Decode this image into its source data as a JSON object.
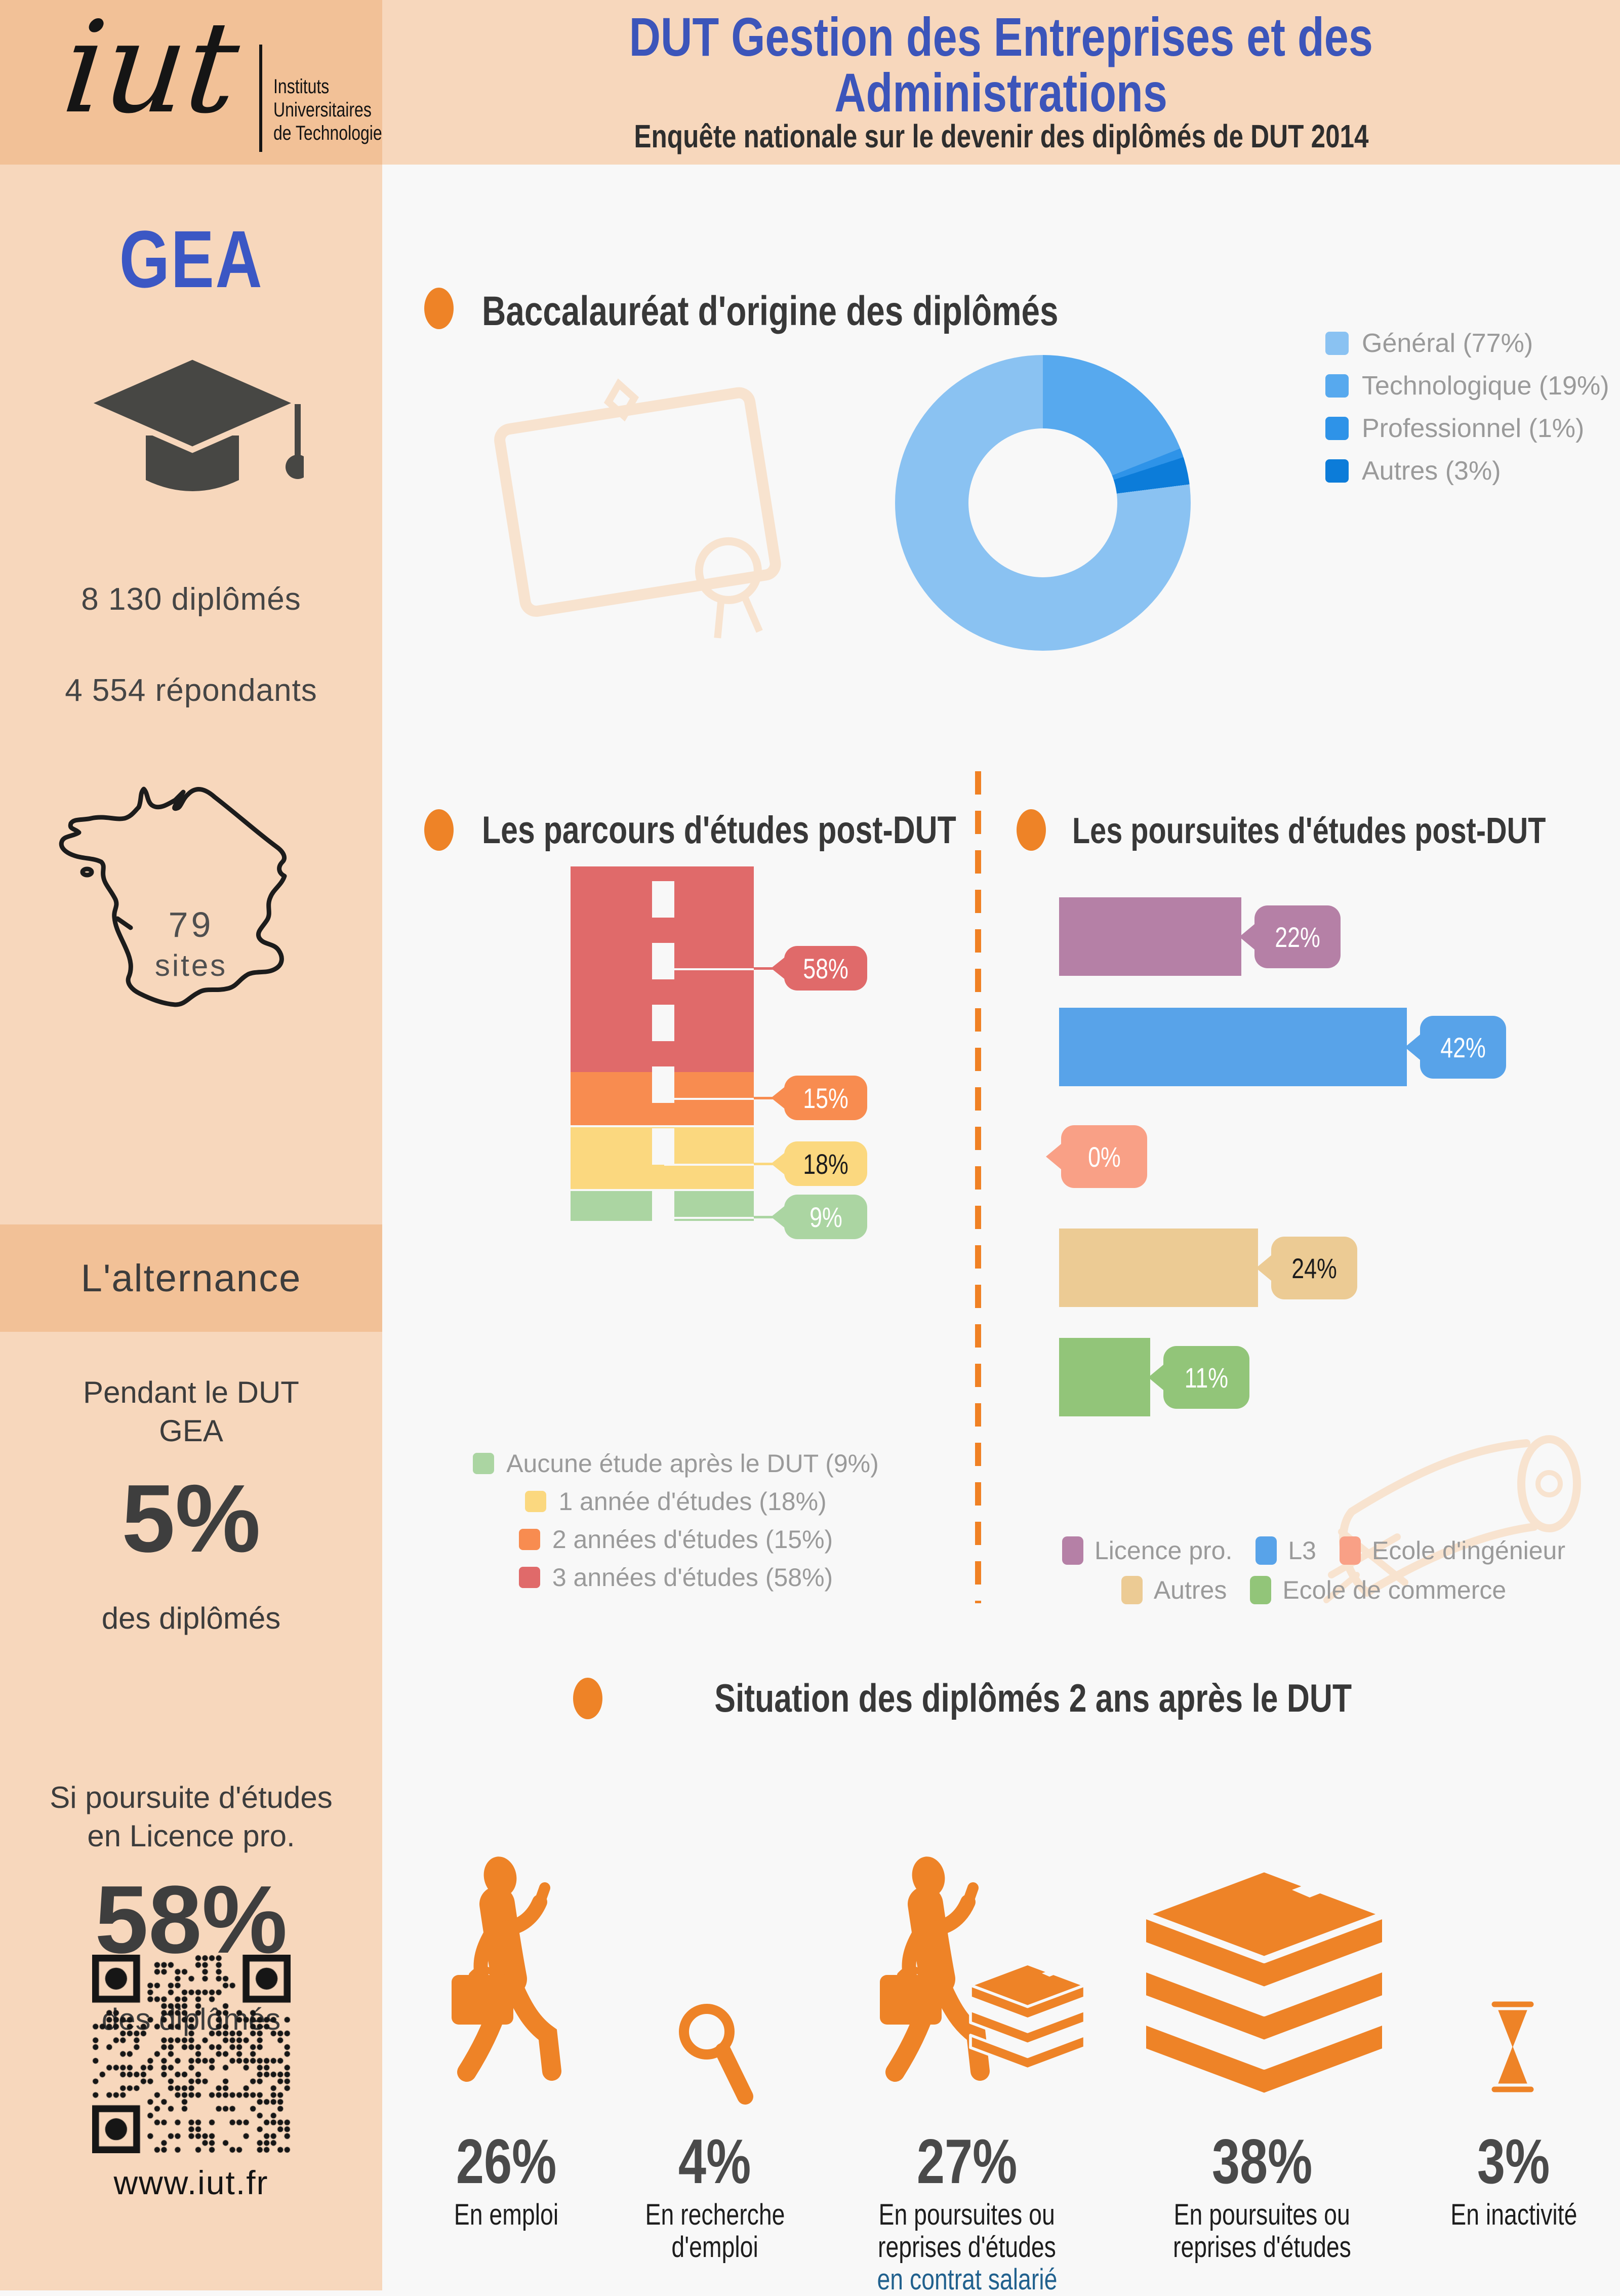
{
  "header": {
    "title_line1": "DUT Gestion des Entreprises et des",
    "title_line2": "Administrations",
    "subtitle": "Enquête nationale sur le devenir des diplômés de DUT 2014"
  },
  "sidebar": {
    "logo_text": "iut",
    "logo_caption_lines": [
      "Instituts",
      "Universitaires",
      "de Technologie"
    ],
    "program": "GEA",
    "stat_diplomes": "8 130 diplômés",
    "stat_repondants": "4 554 répondants",
    "map_number": "79",
    "map_label": "sites",
    "alternance_title": "L'alternance",
    "pendant_line1": "Pendant le DUT",
    "pendant_line2": "GEA",
    "alternance_pct": "5%",
    "alternance_note": "des diplômés",
    "licence_line1": "Si poursuite d'études",
    "licence_line2": "en Licence pro.",
    "licence_pct": "58%",
    "licence_note": "des diplômés",
    "website": "www.iut.fr"
  },
  "sections": {
    "bac_heading": "Baccalauréat d'origine des diplômés",
    "parcours_heading": "Les parcours d'études post-DUT",
    "poursuites_heading": "Les poursuites d'études post-DUT",
    "situation_heading": "Situation des diplômés 2 ans après le DUT"
  },
  "chart_data": [
    {
      "id": "bac_origine",
      "type": "pie",
      "donut": true,
      "title": "Baccalauréat d'origine des diplômés",
      "labels": [
        "Général",
        "Technologique",
        "Professionnel",
        "Autres"
      ],
      "values": [
        77,
        19,
        1,
        3
      ],
      "colors": [
        "#8ac2f2",
        "#57a9ee",
        "#2e93e8",
        "#0c7cd9"
      ],
      "draw_order": [
        1,
        2,
        3,
        0
      ],
      "legend": [
        "Général (77%)",
        "Technologique (19%)",
        "Professionnel (1%)",
        "Autres (3%)"
      ],
      "legend_position": "right"
    },
    {
      "id": "parcours",
      "type": "bar",
      "stacked": true,
      "orientation": "vertical",
      "title": "Les parcours d'études post-DUT",
      "categories": [
        "3 années d'études",
        "2 années d'études",
        "1 année d'études",
        "Aucune étude après le DUT"
      ],
      "values": [
        58,
        15,
        18,
        9
      ],
      "labels": [
        "58%",
        "15%",
        "18%",
        "9%"
      ],
      "colors": [
        "#e06a6a",
        "#f88c50",
        "#fbd87f",
        "#abd5a2"
      ],
      "legend": [
        "Aucune étude après le DUT (9%)",
        "1 année d'études (18%)",
        "2 années d'études (15%)",
        "3 années d'études (58%)"
      ],
      "legend_colors": [
        "#abd5a2",
        "#fbd87f",
        "#f88c50",
        "#e06a6a"
      ],
      "ylim": [
        0,
        100
      ]
    },
    {
      "id": "poursuites",
      "type": "bar",
      "orientation": "horizontal",
      "title": "Les poursuites d'études post-DUT",
      "categories": [
        "Licence pro.",
        "L3",
        "Ecole d'ingénieur",
        "Autres",
        "Ecole de commerce"
      ],
      "values": [
        22,
        42,
        0,
        24,
        11
      ],
      "labels": [
        "22%",
        "42%",
        "0%",
        "24%",
        "11%"
      ],
      "colors": [
        "#b580a6",
        "#58a3e9",
        "#f9a086",
        "#eccb94",
        "#92c579"
      ],
      "legend_row1": [
        "Licence pro.",
        "L3",
        "Ecole d'ingénieur"
      ],
      "legend_row2": [
        "Autres",
        "Ecole de commerce"
      ],
      "xlim": [
        0,
        50
      ]
    }
  ],
  "situation_items": [
    {
      "icon": "walking-worker-icon",
      "pct": "26%",
      "l1": "En emploi"
    },
    {
      "icon": "magnifier-icon",
      "pct": "4%",
      "l1": "En recherche",
      "l2": "d'emploi"
    },
    {
      "icon": "worker-books-icon",
      "pct": "27%",
      "l1": "En poursuites ou",
      "l2": "reprises d'études",
      "l3": "en contrat salarié"
    },
    {
      "icon": "books-stack-icon",
      "pct": "38%",
      "l1": "En poursuites ou",
      "l2": "reprises d'études"
    },
    {
      "icon": "hourglass-icon",
      "pct": "3%",
      "l1": "En inactivité"
    }
  ],
  "colors": {
    "accent_orange": "#ee8327",
    "peach_light": "#f7d7bc",
    "peach_mid": "#f2c197",
    "title_blue": "#3c55ba",
    "salary_blue": "#21618e",
    "page_bg": "#f8f8f8",
    "legend_gray": "#9a9a9a",
    "watermark_peach": "#f8e3cf"
  }
}
